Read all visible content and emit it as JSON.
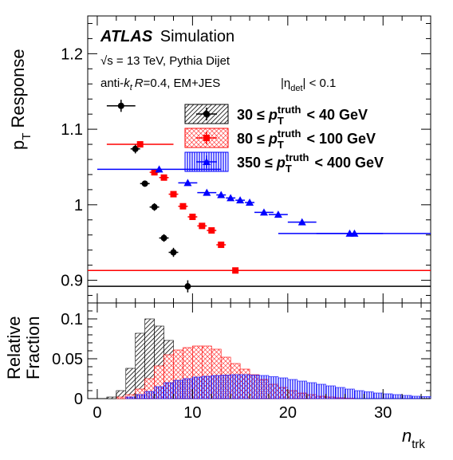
{
  "experiment": "ATLAS",
  "annotations": {
    "label_suffix": "Simulation",
    "energy": "√s = 13 TeV, Pythia Dijet",
    "algo_prefix": "anti-",
    "algo_k": "k",
    "algo_t": "t",
    "algo_r": "R",
    "algo_rest": "=0.4, EM+JES",
    "eta_prefix": "|η",
    "eta_sub": "det",
    "eta_rest": "| < 0.1"
  },
  "colors": {
    "black": "#000000",
    "red": "#ff0000",
    "blue": "#0000ff"
  },
  "chart_data": [
    {
      "type": "scatter",
      "panel": "top",
      "ylabel_main": "p",
      "ylabel_sub": "T",
      "ylabel_rest": " Response",
      "xlim": [
        -1,
        35
      ],
      "ylim": [
        0.87,
        1.25
      ],
      "yticks": [
        "0.9",
        "1",
        "1.1",
        "1.2"
      ],
      "ytick_values": [
        0.9,
        1.0,
        1.1,
        1.2
      ],
      "legend_placement": "top-right",
      "series": [
        {
          "name": "30 ≤ p_T^truth < 40 GeV",
          "legend": {
            "lo": "30",
            "hi": "40 GeV"
          },
          "color": "#000000",
          "marker": "circle",
          "points": [
            {
              "x": 2.5,
              "xerr": 1.5,
              "y": 1.131,
              "yerr": 0.008
            },
            {
              "x": 4.0,
              "xerr": 0.5,
              "y": 1.074,
              "yerr": 0.006
            },
            {
              "x": 5.0,
              "xerr": 0.5,
              "y": 1.028,
              "yerr": 0.004
            },
            {
              "x": 6.0,
              "xerr": 0.5,
              "y": 0.997,
              "yerr": 0.005
            },
            {
              "x": 7.0,
              "xerr": 0.5,
              "y": 0.956,
              "yerr": 0.005
            },
            {
              "x": 8.0,
              "xerr": 0.5,
              "y": 0.937,
              "yerr": 0.006
            },
            {
              "x": 9.5,
              "xerr": 25.5,
              "y": 0.892,
              "yerr": 0.008
            }
          ]
        },
        {
          "name": "80 ≤ p_T^truth < 100 GeV",
          "legend": {
            "lo": "80",
            "hi": "100 GeV"
          },
          "color": "#ff0000",
          "marker": "square",
          "points": [
            {
              "x": 4.5,
              "xerr": 3.5,
              "y": 1.08,
              "yerr": 0.003
            },
            {
              "x": 6.0,
              "xerr": 0.5,
              "y": 1.043,
              "yerr": 0.002
            },
            {
              "x": 7.0,
              "xerr": 0.5,
              "y": 1.036,
              "yerr": 0.002
            },
            {
              "x": 8.0,
              "xerr": 0.5,
              "y": 1.014,
              "yerr": 0.002
            },
            {
              "x": 9.0,
              "xerr": 0.5,
              "y": 0.998,
              "yerr": 0.002
            },
            {
              "x": 10.0,
              "xerr": 0.5,
              "y": 0.984,
              "yerr": 0.002
            },
            {
              "x": 11.0,
              "xerr": 0.5,
              "y": 0.972,
              "yerr": 0.002
            },
            {
              "x": 12.0,
              "xerr": 0.5,
              "y": 0.966,
              "yerr": 0.002
            },
            {
              "x": 13.0,
              "xerr": 0.5,
              "y": 0.947,
              "yerr": 0.003
            },
            {
              "x": 14.5,
              "xerr": 20.5,
              "y": 0.913,
              "yerr": 0.002
            }
          ]
        },
        {
          "name": "350 ≤ p_T^truth < 400 GeV",
          "legend": {
            "lo": "350",
            "hi": "400 GeV"
          },
          "color": "#0000ff",
          "marker": "triangle",
          "points": [
            {
              "x": 6.5,
              "xerr": 6.5,
              "y": 1.047,
              "yerr": 0.002
            },
            {
              "x": 9.5,
              "xerr": 1.0,
              "y": 1.029,
              "yerr": 0.002
            },
            {
              "x": 11.5,
              "xerr": 1.0,
              "y": 1.016,
              "yerr": 0.002
            },
            {
              "x": 13.0,
              "xerr": 0.5,
              "y": 1.013,
              "yerr": 0.002
            },
            {
              "x": 14.0,
              "xerr": 0.5,
              "y": 1.009,
              "yerr": 0.002
            },
            {
              "x": 15.0,
              "xerr": 0.5,
              "y": 1.006,
              "yerr": 0.002
            },
            {
              "x": 16.0,
              "xerr": 0.5,
              "y": 1.003,
              "yerr": 0.002
            },
            {
              "x": 17.5,
              "xerr": 1.0,
              "y": 0.99,
              "yerr": 0.002
            },
            {
              "x": 19.0,
              "xerr": 1.0,
              "y": 0.987,
              "yerr": 0.002
            },
            {
              "x": 21.5,
              "xerr": 1.5,
              "y": 0.977,
              "yerr": 0.002
            },
            {
              "x": 26.5,
              "xerr": 3.5,
              "y": 0.962,
              "yerr": 0.002
            },
            {
              "x": 27.0,
              "xerr": 8.0,
              "y": 0.962,
              "yerr": 0.002
            }
          ]
        }
      ]
    },
    {
      "type": "bar",
      "panel": "bottom",
      "ylabel_line1": "Relative",
      "ylabel_line2": "Fraction",
      "xlabel_main": "n",
      "xlabel_sub": "trk",
      "xlim": [
        -1,
        35
      ],
      "ylim": [
        0,
        0.12
      ],
      "xticks": [
        "0",
        "10",
        "20",
        "30"
      ],
      "xtick_values": [
        0,
        10,
        20,
        30
      ],
      "yticks": [
        "0",
        "0.05",
        "0.1"
      ],
      "ytick_values": [
        0,
        0.05,
        0.1
      ],
      "bin_start": 0,
      "bin_width": 1,
      "series": [
        {
          "name": "30 ≤ p_T^truth < 40 GeV",
          "color": "#000000",
          "pattern": "diagonal-hatch",
          "values": [
            0.0,
            0.002,
            0.01,
            0.038,
            0.082,
            0.1,
            0.091,
            0.073,
            0.045,
            0.012,
            0.003
          ]
        },
        {
          "name": "80 ≤ p_T^truth < 100 GeV",
          "color": "#ff0000",
          "pattern": "crosshatch",
          "values": [
            0.0,
            0.0,
            0.002,
            0.005,
            0.012,
            0.025,
            0.041,
            0.055,
            0.061,
            0.064,
            0.066,
            0.066,
            0.062,
            0.052,
            0.044,
            0.037,
            0.03,
            0.024,
            0.018,
            0.014,
            0.01,
            0.007,
            0.005,
            0.003,
            0.002,
            0.001,
            0.0005
          ]
        },
        {
          "name": "350 ≤ p_T^truth < 400 GeV",
          "color": "#0000ff",
          "pattern": "vertical-hatch",
          "values": [
            0.0,
            0.0,
            0.0,
            0.002,
            0.005,
            0.009,
            0.015,
            0.02,
            0.023,
            0.025,
            0.027,
            0.028,
            0.029,
            0.0295,
            0.03,
            0.03,
            0.0295,
            0.029,
            0.0275,
            0.026,
            0.024,
            0.022,
            0.02,
            0.018,
            0.016,
            0.014,
            0.012,
            0.01,
            0.0085,
            0.007,
            0.006,
            0.005,
            0.004,
            0.003,
            0.0025
          ]
        }
      ]
    }
  ]
}
